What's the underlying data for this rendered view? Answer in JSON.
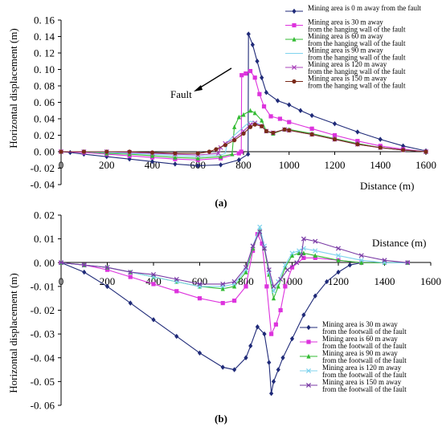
{
  "chart_data": [
    {
      "type": "line",
      "caption": "(a)",
      "xlabel": "Distance (m)",
      "ylabel": "Horizontal displacement (m)",
      "xlim": [
        0,
        1600
      ],
      "ylim": [
        -0.04,
        0.16
      ],
      "x_ticks": [
        "0",
        "200",
        "400",
        "600",
        "800",
        "1000",
        "1200",
        "1400",
        "1600"
      ],
      "y_ticks": [
        "-0. 04",
        "-0. 02",
        "0. 00",
        "0. 02",
        "0. 04",
        "0. 06",
        "0. 08",
        "0. 10",
        "0. 12",
        "0. 14",
        "0. 16"
      ],
      "annotation": "Fault",
      "legend_position": "top-right",
      "series": [
        {
          "name": "Mining area is 0 m away from the fault",
          "color": "#1f2a78",
          "marker": "diamond",
          "x": [
            0,
            40,
            100,
            200,
            300,
            400,
            500,
            600,
            700,
            780,
            820,
            822,
            840,
            860,
            880,
            900,
            950,
            1000,
            1050,
            1100,
            1200,
            1300,
            1400,
            1500,
            1600
          ],
          "y": [
            0,
            -0.001,
            -0.003,
            -0.006,
            -0.009,
            -0.012,
            -0.015,
            -0.017,
            -0.016,
            -0.01,
            -0.003,
            0.143,
            0.13,
            0.11,
            0.09,
            0.072,
            0.062,
            0.057,
            0.05,
            0.044,
            0.034,
            0.024,
            0.015,
            0.007,
            0.001
          ]
        },
        {
          "name": "Mining area is 30 m away from the hanging wall of the fault",
          "color": "#dd33dd",
          "marker": "square",
          "x": [
            0,
            100,
            200,
            300,
            400,
            500,
            600,
            700,
            780,
            790,
            792,
            810,
            830,
            850,
            870,
            890,
            920,
            960,
            1000,
            1100,
            1200,
            1300,
            1400,
            1500,
            1600
          ],
          "y": [
            0,
            -0.001,
            -0.003,
            -0.005,
            -0.007,
            -0.009,
            -0.01,
            -0.008,
            -0.002,
            0,
            0.093,
            0.095,
            0.098,
            0.09,
            0.07,
            0.055,
            0.043,
            0.04,
            0.036,
            0.028,
            0.02,
            0.013,
            0.007,
            0.003,
            0
          ]
        },
        {
          "name": "Mining area is 60 m away from the hanging wall of the fault",
          "color": "#33bb33",
          "marker": "triangle",
          "x": [
            0,
            100,
            200,
            300,
            400,
            500,
            600,
            700,
            750,
            760,
            780,
            800,
            830,
            850,
            880,
            900,
            930,
            980,
            1000,
            1100,
            1200,
            1300,
            1400,
            1500,
            1600
          ],
          "y": [
            0,
            0,
            -0.002,
            -0.003,
            -0.005,
            -0.007,
            -0.008,
            -0.006,
            -0.003,
            0.03,
            0.042,
            0.045,
            0.05,
            0.047,
            0.038,
            0.025,
            0.022,
            0.027,
            0.027,
            0.022,
            0.016,
            0.01,
            0.005,
            0.002,
            0
          ]
        },
        {
          "name": "Mining area is 90 m away from the hanging wall of the fault",
          "color": "#7fd3ee",
          "marker": "none",
          "x": [
            0,
            100,
            200,
            300,
            400,
            500,
            600,
            700,
            720,
            730,
            760,
            800,
            830,
            850,
            880,
            900,
            930,
            980,
            1000,
            1100,
            1200,
            1300,
            1400,
            1500,
            1600
          ],
          "y": [
            0,
            0,
            -0.001,
            -0.002,
            -0.003,
            -0.005,
            -0.006,
            -0.004,
            -0.002,
            0.012,
            0.02,
            0.03,
            0.037,
            0.036,
            0.032,
            0.025,
            0.023,
            0.027,
            0.026,
            0.021,
            0.015,
            0.009,
            0.005,
            0.002,
            0
          ]
        },
        {
          "name": "Mining area is 120 m away from the hanging wall of the fault",
          "color": "#aa44bb",
          "marker": "x",
          "x": [
            0,
            100,
            200,
            300,
            400,
            500,
            600,
            690,
            700,
            720,
            760,
            800,
            830,
            850,
            880,
            900,
            930,
            980,
            1000,
            1100,
            1200,
            1300,
            1400,
            1500,
            1600
          ],
          "y": [
            0,
            0,
            0,
            -0.001,
            -0.002,
            -0.003,
            -0.004,
            -0.002,
            0.005,
            0.01,
            0.016,
            0.025,
            0.033,
            0.035,
            0.031,
            0.025,
            0.023,
            0.027,
            0.026,
            0.021,
            0.015,
            0.009,
            0.005,
            0.002,
            0
          ]
        },
        {
          "name": "Mining area is 150 m away from the hanging wall of the fault",
          "color": "#7a2a1a",
          "marker": "circle",
          "x": [
            0,
            100,
            200,
            300,
            400,
            500,
            600,
            650,
            680,
            720,
            760,
            800,
            830,
            850,
            880,
            900,
            930,
            980,
            1000,
            1100,
            1200,
            1300,
            1400,
            1500,
            1600
          ],
          "y": [
            0,
            0,
            0,
            0,
            -0.001,
            -0.002,
            -0.002,
            0,
            0.003,
            0.008,
            0.014,
            0.022,
            0.03,
            0.033,
            0.031,
            0.025,
            0.023,
            0.027,
            0.026,
            0.021,
            0.015,
            0.009,
            0.005,
            0.002,
            0
          ]
        }
      ]
    },
    {
      "type": "line",
      "caption": "(b)",
      "xlabel": "Distance (m)",
      "ylabel": "Horizontal displacement (m)",
      "xlim": [
        0,
        1600
      ],
      "ylim": [
        -0.06,
        0.02
      ],
      "x_ticks": [
        "0",
        "200",
        "400",
        "600",
        "800",
        "1000",
        "1200",
        "1400",
        "1600"
      ],
      "y_ticks": [
        "-0. 06",
        "-0. 05",
        "-0. 04",
        "-0. 03",
        "-0. 02",
        "-0. 01",
        "0. 00",
        "0. 01",
        "0. 02"
      ],
      "legend_position": "bottom-right",
      "series": [
        {
          "name": "Mining area is 30 m away from the footwall of the fault",
          "color": "#1f2a78",
          "marker": "diamond",
          "x": [
            0,
            100,
            200,
            300,
            400,
            500,
            600,
            700,
            750,
            800,
            820,
            850,
            880,
            900,
            910,
            920,
            940,
            960,
            1000,
            1050,
            1100,
            1150,
            1200,
            1250,
            1300
          ],
          "y": [
            0,
            -0.004,
            -0.01,
            -0.017,
            -0.024,
            -0.031,
            -0.038,
            -0.044,
            -0.045,
            -0.04,
            -0.035,
            -0.027,
            -0.03,
            -0.042,
            -0.055,
            -0.05,
            -0.045,
            -0.04,
            -0.032,
            -0.022,
            -0.014,
            -0.008,
            -0.004,
            -0.001,
            0
          ]
        },
        {
          "name": "Mining area is 60 m away from the footwall of the fault",
          "color": "#dd33dd",
          "marker": "square",
          "x": [
            0,
            100,
            200,
            300,
            400,
            500,
            600,
            700,
            750,
            800,
            830,
            850,
            870,
            890,
            910,
            930,
            950,
            970,
            1000,
            1050,
            1100,
            1200,
            1300,
            1400,
            1500
          ],
          "y": [
            0,
            -0.001,
            -0.003,
            -0.006,
            -0.009,
            -0.012,
            -0.015,
            -0.017,
            -0.016,
            -0.01,
            0.005,
            0.012,
            0.008,
            -0.01,
            -0.03,
            -0.026,
            -0.02,
            -0.01,
            -0.002,
            0.002,
            0.002,
            0.001,
            0,
            0,
            0
          ]
        },
        {
          "name": "Mining area is 90 m away from the footwall of the fault",
          "color": "#33bb33",
          "marker": "triangle",
          "x": [
            0,
            100,
            200,
            300,
            400,
            500,
            600,
            700,
            750,
            800,
            830,
            860,
            880,
            900,
            920,
            940,
            970,
            1000,
            1030,
            1050,
            1100,
            1200,
            1300,
            1400,
            1500
          ],
          "y": [
            0,
            -0.001,
            -0.002,
            -0.004,
            -0.006,
            -0.008,
            -0.01,
            -0.011,
            -0.01,
            -0.004,
            0.006,
            0.014,
            0.006,
            -0.005,
            -0.015,
            -0.01,
            -0.002,
            0.003,
            0.004,
            0.004,
            0.003,
            0.001,
            0,
            0,
            0
          ]
        },
        {
          "name": "Mining area is 120 m away from the footwall of the fault",
          "color": "#7fd3ee",
          "marker": "x",
          "x": [
            0,
            100,
            200,
            300,
            400,
            500,
            600,
            700,
            750,
            800,
            830,
            860,
            880,
            900,
            920,
            940,
            970,
            1000,
            1030,
            1050,
            1100,
            1200,
            1300,
            1400,
            1500
          ],
          "y": [
            0,
            -0.001,
            -0.002,
            -0.004,
            -0.006,
            -0.008,
            -0.01,
            -0.01,
            -0.009,
            -0.003,
            0.007,
            0.015,
            0.007,
            -0.004,
            -0.012,
            -0.008,
            -0.001,
            0.004,
            0.005,
            0.006,
            0.005,
            0.003,
            0.001,
            0,
            0
          ]
        },
        {
          "name": "Mining area is 150 m away from the footwall of the fault",
          "color": "#7a3aa5",
          "marker": "x",
          "x": [
            0,
            100,
            200,
            300,
            400,
            500,
            600,
            700,
            750,
            800,
            830,
            860,
            880,
            900,
            920,
            950,
            980,
            1020,
            1040,
            1050,
            1100,
            1200,
            1300,
            1400,
            1500
          ],
          "y": [
            0,
            -0.001,
            -0.002,
            -0.004,
            -0.005,
            -0.007,
            -0.009,
            -0.009,
            -0.008,
            -0.002,
            0.007,
            0.013,
            0.006,
            -0.003,
            -0.01,
            -0.007,
            -0.003,
            0,
            0.003,
            0.01,
            0.009,
            0.006,
            0.003,
            0.001,
            0
          ]
        }
      ]
    }
  ]
}
